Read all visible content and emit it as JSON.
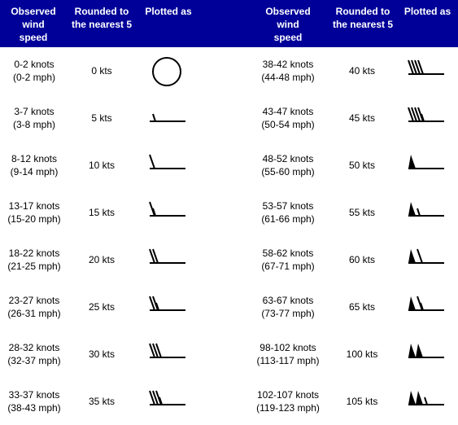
{
  "headers": {
    "observed": "Observed\nwind\nspeed",
    "rounded": "Rounded to\nthe nearest 5",
    "plotted": "Plotted as"
  },
  "left_rows": [
    {
      "observed": "0-2 knots\n(0-2 mph)",
      "rounded": "0 kts",
      "knots": 0
    },
    {
      "observed": "3-7 knots\n(3-8 mph)",
      "rounded": "5 kts",
      "knots": 5
    },
    {
      "observed": "8-12 knots\n(9-14 mph)",
      "rounded": "10 kts",
      "knots": 10
    },
    {
      "observed": "13-17 knots\n(15-20 mph)",
      "rounded": "15 kts",
      "knots": 15
    },
    {
      "observed": "18-22 knots\n(21-25 mph)",
      "rounded": "20 kts",
      "knots": 20
    },
    {
      "observed": "23-27 knots\n(26-31 mph)",
      "rounded": "25 kts",
      "knots": 25
    },
    {
      "observed": "28-32 knots\n(32-37 mph)",
      "rounded": "30 kts",
      "knots": 30
    },
    {
      "observed": "33-37 knots\n(38-43 mph)",
      "rounded": "35 kts",
      "knots": 35
    }
  ],
  "right_rows": [
    {
      "observed": "38-42 knots\n(44-48 mph)",
      "rounded": "40 kts",
      "knots": 40
    },
    {
      "observed": "43-47 knots\n(50-54 mph)",
      "rounded": "45 kts",
      "knots": 45
    },
    {
      "observed": "48-52 knots\n(55-60 mph)",
      "rounded": "50 kts",
      "knots": 50
    },
    {
      "observed": "53-57 knots\n(61-66 mph)",
      "rounded": "55 kts",
      "knots": 55
    },
    {
      "observed": "58-62 knots\n(67-71 mph)",
      "rounded": "60 kts",
      "knots": 60
    },
    {
      "observed": "63-67 knots\n(73-77 mph)",
      "rounded": "65 kts",
      "knots": 65
    },
    {
      "observed": "98-102 knots\n(113-117 mph)",
      "rounded": "100 kts",
      "knots": 100
    },
    {
      "observed": "102-107 knots\n(119-123 mph)",
      "rounded": "105 kts",
      "knots": 105
    }
  ],
  "colors": {
    "header_bg": "#000099",
    "header_text": "#ffffff",
    "symbol": "#000000"
  }
}
